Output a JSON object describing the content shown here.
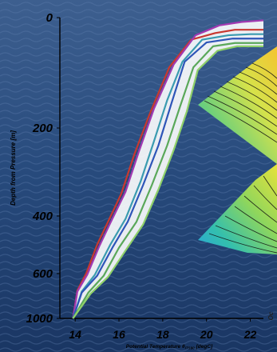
{
  "chart_data": {
    "type": "line",
    "xlabel": "Potential Temperature θ",
    "xlabel_sub": "ITS90",
    "xlabel_unit": "[degC]",
    "ylabel": "Depth from Pressure [m]",
    "x_ticks": [
      "14",
      "16",
      "18",
      "20",
      "22"
    ],
    "y_ticks": [
      "0",
      "200",
      "400",
      "600",
      "1000"
    ],
    "side_label": "Oc",
    "xlim": [
      13.3,
      22.6
    ],
    "depth_ticks": [
      0,
      200,
      400,
      600,
      1000
    ],
    "series": [
      {
        "color": "#c8382f",
        "points": [
          [
            13.9,
            1000
          ],
          [
            14.1,
            750
          ],
          [
            14.5,
            600
          ],
          [
            15.0,
            500
          ],
          [
            15.5,
            420
          ],
          [
            16.1,
            350
          ],
          [
            16.7,
            260
          ],
          [
            17.4,
            175
          ],
          [
            18.3,
            90
          ],
          [
            19.3,
            40
          ],
          [
            20.4,
            28
          ],
          [
            21.3,
            22
          ],
          [
            22.6,
            22
          ]
        ]
      },
      {
        "color": "#a23ab2",
        "points": [
          [
            13.9,
            1000
          ],
          [
            14.1,
            760
          ],
          [
            14.55,
            610
          ],
          [
            15.1,
            505
          ],
          [
            15.6,
            425
          ],
          [
            16.3,
            345
          ],
          [
            16.9,
            255
          ],
          [
            17.6,
            165
          ],
          [
            18.5,
            85
          ],
          [
            19.5,
            32
          ],
          [
            20.6,
            14
          ],
          [
            21.6,
            8
          ],
          [
            22.6,
            5
          ]
        ]
      },
      {
        "color": "#3a9bb0",
        "points": [
          [
            13.9,
            1000
          ],
          [
            14.3,
            760
          ],
          [
            14.9,
            610
          ],
          [
            15.6,
            500
          ],
          [
            16.3,
            410
          ],
          [
            17.0,
            320
          ],
          [
            17.6,
            230
          ],
          [
            18.2,
            150
          ],
          [
            18.9,
            80
          ],
          [
            19.8,
            40
          ],
          [
            21.0,
            32
          ],
          [
            22.0,
            30
          ],
          [
            22.6,
            30
          ]
        ]
      },
      {
        "color": "#2e55b8",
        "points": [
          [
            13.9,
            1000
          ],
          [
            14.3,
            770
          ],
          [
            15.0,
            620
          ],
          [
            15.7,
            510
          ],
          [
            16.4,
            420
          ],
          [
            17.1,
            330
          ],
          [
            17.8,
            240
          ],
          [
            18.4,
            155
          ],
          [
            19.0,
            80
          ],
          [
            20.0,
            45
          ],
          [
            21.2,
            38
          ],
          [
            22.6,
            38
          ]
        ]
      },
      {
        "color": "#5aa85a",
        "points": [
          [
            13.9,
            1000
          ],
          [
            14.6,
            770
          ],
          [
            15.3,
            620
          ],
          [
            16.0,
            510
          ],
          [
            16.8,
            420
          ],
          [
            17.5,
            330
          ],
          [
            18.2,
            240
          ],
          [
            18.8,
            160
          ],
          [
            19.4,
            90
          ],
          [
            20.3,
            52
          ],
          [
            21.3,
            46
          ],
          [
            22.6,
            46
          ]
        ]
      },
      {
        "color": "#8fd06a",
        "points": [
          [
            13.9,
            1000
          ],
          [
            14.7,
            780
          ],
          [
            15.5,
            630
          ],
          [
            16.3,
            520
          ],
          [
            17.1,
            430
          ],
          [
            17.8,
            340
          ],
          [
            18.5,
            250
          ],
          [
            19.1,
            170
          ],
          [
            19.6,
            95
          ],
          [
            20.5,
            60
          ],
          [
            21.4,
            52
          ],
          [
            22.6,
            52
          ]
        ]
      }
    ]
  }
}
